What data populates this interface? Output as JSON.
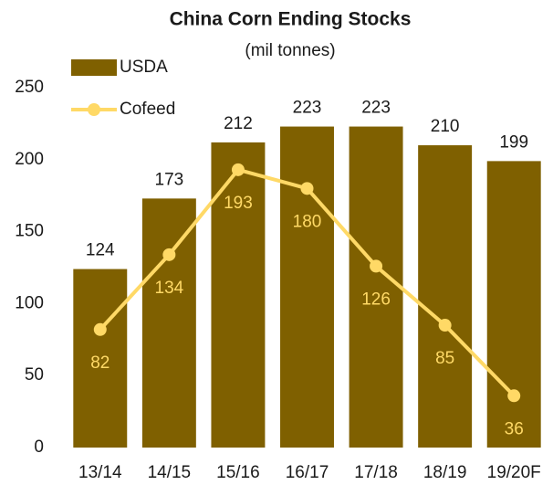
{
  "chart_data": {
    "type": "bar",
    "title": "China Corn Ending Stocks",
    "subtitle": "(mil tonnes)",
    "categories": [
      "13/14",
      "14/15",
      "15/16",
      "16/17",
      "17/18",
      "18/19",
      "19/20F"
    ],
    "series": [
      {
        "name": "USDA",
        "type": "bar",
        "color": "#7f6000",
        "values": [
          124,
          173,
          212,
          223,
          223,
          210,
          199
        ]
      },
      {
        "name": "Cofeed",
        "type": "line",
        "color": "#ffd966",
        "values": [
          82,
          134,
          193,
          180,
          126,
          85,
          36
        ]
      }
    ],
    "ylim": [
      0,
      250
    ],
    "yticks": [
      0,
      50,
      100,
      150,
      200,
      250
    ],
    "grid": false
  }
}
